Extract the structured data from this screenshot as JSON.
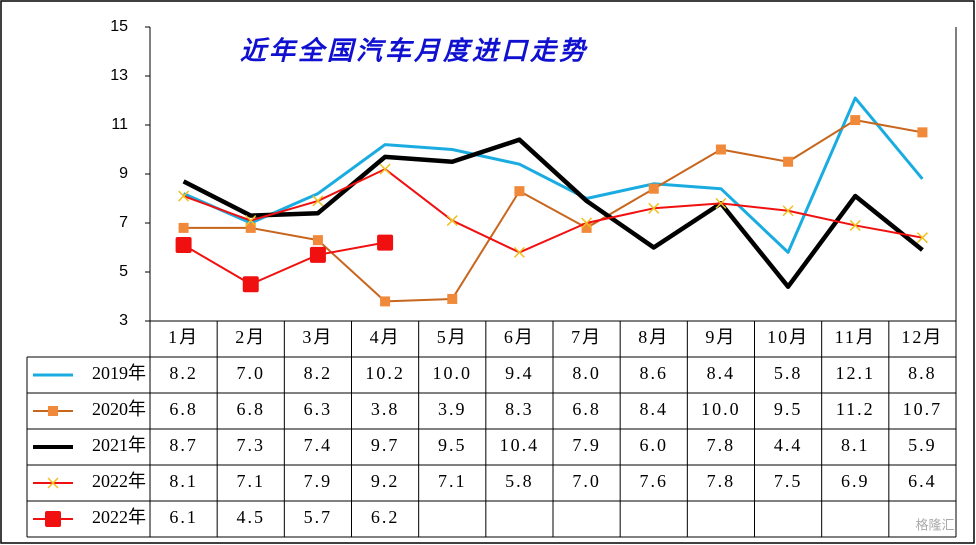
{
  "chart_data": {
    "type": "line",
    "title": "近年全国汽车月度进口走势",
    "watermark": "格隆汇",
    "categories": [
      "1月",
      "2月",
      "3月",
      "4月",
      "5月",
      "6月",
      "7月",
      "8月",
      "9月",
      "10月",
      "11月",
      "12月"
    ],
    "ylim": [
      3,
      15
    ],
    "yticks": [
      3,
      5,
      7,
      9,
      11,
      13,
      15
    ],
    "series": [
      {
        "name": "2019年",
        "color": "#1aace0",
        "marker": "none",
        "marker_color": "#1aace0",
        "linewidth": 3,
        "values": [
          8.2,
          7.0,
          8.2,
          10.2,
          10.0,
          9.4,
          8.0,
          8.6,
          8.4,
          5.8,
          12.1,
          8.8
        ],
        "value_labels": [
          "8.2",
          "7.0",
          "8.2",
          "10.2",
          "10.0",
          "9.4",
          "8.0",
          "8.6",
          "8.4",
          "5.8",
          "12.1",
          "8.8"
        ]
      },
      {
        "name": "2020年",
        "color": "#c8661e",
        "marker": "square",
        "marker_color": "#f08a3a",
        "linewidth": 2,
        "values": [
          6.8,
          6.8,
          6.3,
          3.8,
          3.9,
          8.3,
          6.8,
          8.4,
          10.0,
          9.5,
          11.2,
          10.7
        ],
        "value_labels": [
          "6.8",
          "6.8",
          "6.3",
          "3.8",
          "3.9",
          "8.3",
          "6.8",
          "8.4",
          "10.0",
          "9.5",
          "11.2",
          "10.7"
        ]
      },
      {
        "name": "2021年",
        "color": "#000000",
        "marker": "none",
        "marker_color": "#000000",
        "linewidth": 4.5,
        "values": [
          8.7,
          7.3,
          7.4,
          9.7,
          9.5,
          10.4,
          7.9,
          6.0,
          7.8,
          4.4,
          8.1,
          5.9
        ],
        "value_labels": [
          "8.7",
          "7.3",
          "7.4",
          "9.7",
          "9.5",
          "10.4",
          "7.9",
          "6.0",
          "7.8",
          "4.4",
          "8.1",
          "5.9"
        ]
      },
      {
        "name": "2022年",
        "color": "#f01010",
        "marker": "x",
        "marker_color": "#f0c020",
        "linewidth": 2,
        "values": [
          8.1,
          7.1,
          7.9,
          9.2,
          7.1,
          5.8,
          7.0,
          7.6,
          7.8,
          7.5,
          6.9,
          6.4
        ],
        "value_labels": [
          "8.1",
          "7.1",
          "7.9",
          "9.2",
          "7.1",
          "5.8",
          "7.0",
          "7.6",
          "7.8",
          "7.5",
          "6.9",
          "6.4"
        ]
      },
      {
        "name": "2022年",
        "color": "#f01010",
        "marker": "bigsquare",
        "marker_color": "#f01010",
        "linewidth": 2,
        "values": [
          6.1,
          4.5,
          5.7,
          6.2,
          null,
          null,
          null,
          null,
          null,
          null,
          null,
          null
        ],
        "value_labels": [
          "6.1",
          "4.5",
          "5.7",
          "6.2",
          null,
          null,
          null,
          null,
          null,
          null,
          null,
          null
        ]
      }
    ]
  }
}
